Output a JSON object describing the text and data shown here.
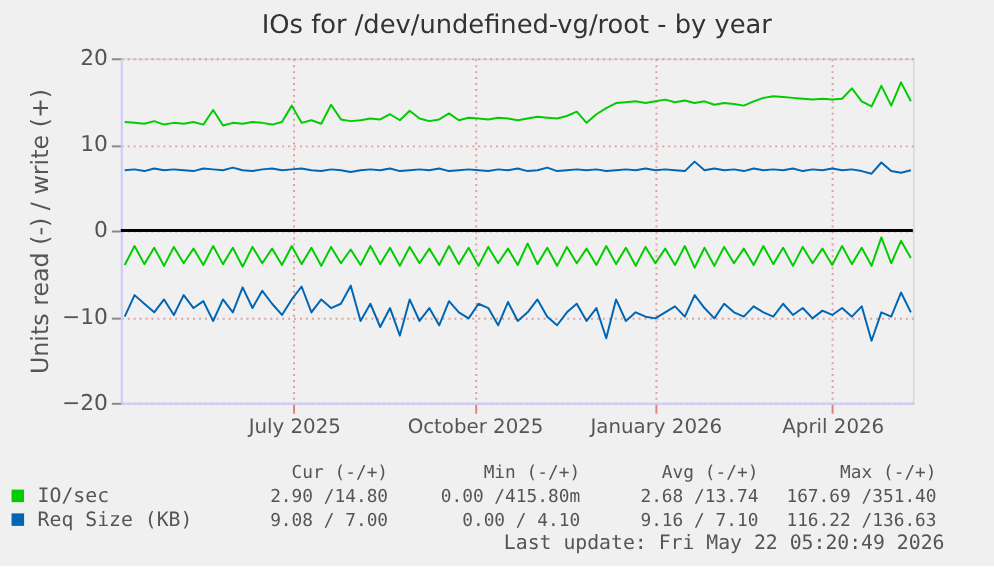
{
  "chart_data": {
    "type": "line",
    "title": "IOs for /dev/undefined-vg/root - by year",
    "ylabel": "Units read (-) / write (+)",
    "x": [
      "2025-04-06",
      "2025-04-11",
      "2025-04-16",
      "2025-04-21",
      "2025-04-26",
      "2025-05-01",
      "2025-05-06",
      "2025-05-11",
      "2025-05-16",
      "2025-05-21",
      "2025-05-26",
      "2025-05-31",
      "2025-06-05",
      "2025-06-10",
      "2025-06-15",
      "2025-06-20",
      "2025-06-25",
      "2025-06-30",
      "2025-07-05",
      "2025-07-10",
      "2025-07-15",
      "2025-07-20",
      "2025-07-25",
      "2025-07-30",
      "2025-08-04",
      "2025-08-09",
      "2025-08-14",
      "2025-08-19",
      "2025-08-24",
      "2025-08-29",
      "2025-09-03",
      "2025-09-08",
      "2025-09-13",
      "2025-09-18",
      "2025-09-23",
      "2025-09-28",
      "2025-10-03",
      "2025-10-08",
      "2025-10-13",
      "2025-10-18",
      "2025-10-23",
      "2025-10-28",
      "2025-11-02",
      "2025-11-07",
      "2025-11-12",
      "2025-11-17",
      "2025-11-22",
      "2025-11-27",
      "2025-12-02",
      "2025-12-07",
      "2025-12-12",
      "2025-12-17",
      "2025-12-22",
      "2025-12-27",
      "2026-01-01",
      "2026-01-06",
      "2026-01-11",
      "2026-01-16",
      "2026-01-21",
      "2026-01-26",
      "2026-01-31",
      "2026-02-05",
      "2026-02-10",
      "2026-02-15",
      "2026-02-20",
      "2026-02-25",
      "2026-03-02",
      "2026-03-07",
      "2026-03-12",
      "2026-03-17",
      "2026-03-22",
      "2026-03-27",
      "2026-04-01",
      "2026-04-06",
      "2026-04-11",
      "2026-04-16",
      "2026-04-21",
      "2026-04-26",
      "2026-05-01",
      "2026-05-06",
      "2026-05-11"
    ],
    "series": [
      {
        "name": "IO/sec",
        "color": "#00cc00",
        "values": [
          12.6,
          12.5,
          12.4,
          12.7,
          12.3,
          12.5,
          12.4,
          12.6,
          12.3,
          14.0,
          12.2,
          12.5,
          12.4,
          12.6,
          12.5,
          12.3,
          12.6,
          14.5,
          12.5,
          12.8,
          12.4,
          14.6,
          12.9,
          12.7,
          12.8,
          13.0,
          12.9,
          13.5,
          12.8,
          13.9,
          13.0,
          12.7,
          12.9,
          13.6,
          12.8,
          13.1,
          13.0,
          12.9,
          13.1,
          13.0,
          12.8,
          13.0,
          13.2,
          13.1,
          13.0,
          13.3,
          13.8,
          12.5,
          13.5,
          14.2,
          14.8,
          14.9,
          15.0,
          14.8,
          15.0,
          15.2,
          14.9,
          15.1,
          14.8,
          15.0,
          14.6,
          14.8,
          14.7,
          14.5,
          15.0,
          15.4,
          15.6,
          15.5,
          15.4,
          15.3,
          15.2,
          15.3,
          15.2,
          15.3,
          16.5,
          15.0,
          14.4,
          16.8,
          14.5,
          17.2,
          15.0
        ]
      },
      {
        "color": "#00cc00",
        "values": [
          -4.0,
          -1.8,
          -3.9,
          -2.0,
          -4.1,
          -1.9,
          -3.8,
          -2.1,
          -4.0,
          -1.8,
          -3.9,
          -2.0,
          -4.2,
          -1.9,
          -3.8,
          -2.1,
          -4.0,
          -1.8,
          -3.9,
          -2.0,
          -4.1,
          -1.9,
          -3.8,
          -2.2,
          -4.0,
          -1.8,
          -3.9,
          -2.0,
          -4.1,
          -1.9,
          -3.8,
          -2.1,
          -4.0,
          -1.8,
          -3.9,
          -2.0,
          -4.1,
          -1.9,
          -3.8,
          -2.1,
          -4.0,
          -1.5,
          -3.9,
          -2.0,
          -4.1,
          -1.9,
          -3.8,
          -2.1,
          -4.0,
          -1.8,
          -3.9,
          -2.0,
          -4.1,
          -1.9,
          -3.8,
          -2.1,
          -4.0,
          -1.8,
          -4.3,
          -2.0,
          -4.1,
          -1.9,
          -3.8,
          -2.1,
          -4.0,
          -1.8,
          -3.9,
          -2.0,
          -4.1,
          -1.9,
          -3.8,
          -2.1,
          -4.0,
          -1.8,
          -3.9,
          -2.0,
          -4.1,
          -0.8,
          -3.8,
          -1.2,
          -3.2
        ]
      },
      {
        "name": "Req Size (KB)",
        "color": "#0066b3",
        "values": [
          7.0,
          7.1,
          6.9,
          7.2,
          7.0,
          7.1,
          7.0,
          6.9,
          7.2,
          7.1,
          7.0,
          7.3,
          7.0,
          6.9,
          7.1,
          7.2,
          7.0,
          7.1,
          7.2,
          7.0,
          6.9,
          7.1,
          7.0,
          6.8,
          7.0,
          7.1,
          7.0,
          7.2,
          6.9,
          7.0,
          7.1,
          7.0,
          7.2,
          6.9,
          7.0,
          7.1,
          7.0,
          6.9,
          7.1,
          7.0,
          7.2,
          6.9,
          7.0,
          7.3,
          6.9,
          7.0,
          7.1,
          7.0,
          7.1,
          6.9,
          7.0,
          7.1,
          7.0,
          7.2,
          7.0,
          7.1,
          7.0,
          6.9,
          8.0,
          7.0,
          7.2,
          7.0,
          7.1,
          6.9,
          7.2,
          7.0,
          7.1,
          7.0,
          7.2,
          6.9,
          7.1,
          7.0,
          7.2,
          7.0,
          7.1,
          6.9,
          6.6,
          7.9,
          6.9,
          6.7,
          7.0
        ]
      },
      {
        "color": "#0066b3",
        "values": [
          -10.0,
          -7.5,
          -8.5,
          -9.5,
          -8.0,
          -9.8,
          -7.5,
          -9.0,
          -8.2,
          -10.5,
          -8.0,
          -9.5,
          -6.6,
          -9.0,
          -7.0,
          -8.5,
          -9.8,
          -8.0,
          -6.5,
          -9.5,
          -8.0,
          -9.0,
          -8.5,
          -6.4,
          -10.5,
          -8.5,
          -11.2,
          -9.0,
          -12.2,
          -8.0,
          -10.5,
          -9.0,
          -11.0,
          -8.2,
          -9.5,
          -10.2,
          -8.5,
          -9.0,
          -11.0,
          -8.3,
          -10.5,
          -9.5,
          -8.0,
          -10.0,
          -11.0,
          -9.5,
          -8.5,
          -10.5,
          -9.0,
          -12.5,
          -8.0,
          -10.5,
          -9.5,
          -10.0,
          -10.2,
          -9.5,
          -8.8,
          -10.0,
          -7.5,
          -9.0,
          -10.2,
          -8.5,
          -9.5,
          -10.0,
          -8.8,
          -9.5,
          -10.0,
          -8.5,
          -9.8,
          -9.0,
          -10.2,
          -9.3,
          -9.8,
          -9.0,
          -10.0,
          -8.8,
          -12.8,
          -9.5,
          -10.0,
          -7.2,
          -9.5
        ]
      }
    ],
    "xlim": [
      "2025-04-04",
      "2026-05-12"
    ],
    "xticks": [
      {
        "value": "2025-07-01",
        "label": "July 2025"
      },
      {
        "value": "2025-10-01",
        "label": "October 2025"
      },
      {
        "value": "2026-01-01",
        "label": "January 2026"
      },
      {
        "value": "2026-04-01",
        "label": "April 2026"
      }
    ],
    "ylim": [
      -20,
      20
    ],
    "yticks": [
      -20,
      -10,
      0,
      10,
      20
    ],
    "ref_lines": [
      {
        "axis": "y",
        "value": 0,
        "color": "#000000"
      }
    ],
    "grid": true,
    "legend": "bottom",
    "annotations": [
      "Cur (-/+)",
      "Min (-/+)",
      "Avg (-/+)",
      "Max (-/+)",
      "2.90 /14.80",
      "0.00 /415.80m",
      "2.68 /13.74",
      "167.69 /351.40",
      "9.08 / 7.00",
      "0.00 / 4.10",
      "9.16 / 7.10",
      "116.22 /136.63",
      "Last update: Fri May 22 05:20:49 2026"
    ]
  }
}
